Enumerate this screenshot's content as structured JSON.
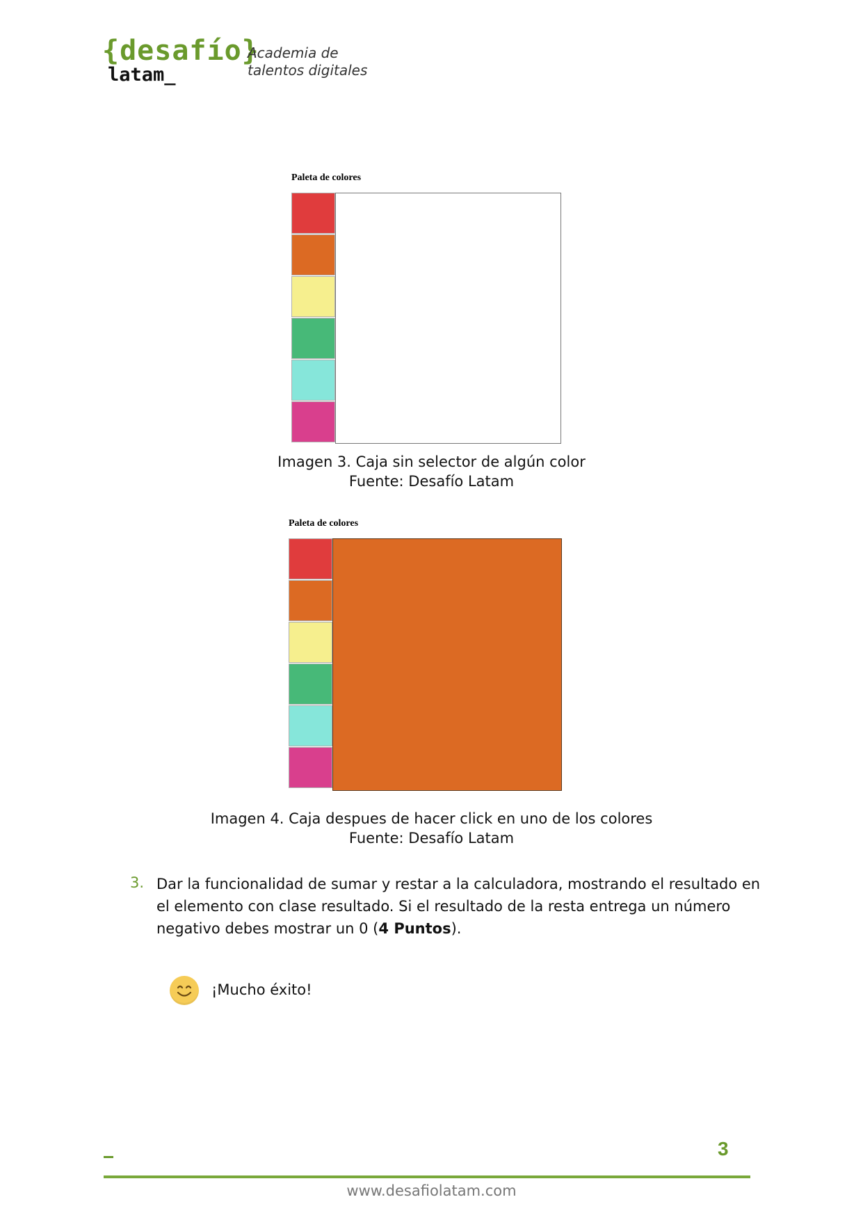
{
  "header": {
    "logo_main": "{desafío}",
    "logo_sub": "latam_",
    "tagline_line1": "Academia de",
    "tagline_line2": "talentos digitales"
  },
  "figure3": {
    "title": "Paleta de colores",
    "palette": [
      "#e03c3d",
      "#dc6a23",
      "#f6ef8e",
      "#47b978",
      "#86e6da",
      "#d93f8d"
    ],
    "box_color": "#ffffff",
    "caption_line1": "Imagen 3. Caja sin selector de algún color",
    "caption_line2": "Fuente: Desafío Latam"
  },
  "figure4": {
    "title": "Paleta de colores",
    "palette": [
      "#e03c3d",
      "#dc6a23",
      "#f6ef8e",
      "#47b978",
      "#86e6da",
      "#d93f8d"
    ],
    "box_color": "#dc6a23",
    "caption_line1": "Imagen 4. Caja despues de hacer click en uno de los colores",
    "caption_line2": "Fuente: Desafío Latam"
  },
  "list_item": {
    "number": "3.",
    "text_before": "Dar la funcionalidad de sumar y restar a la calculadora, mostrando el resultado en el elemento con clase resultado. Si el resultado de la resta entrega un número negativo debes mostrar un 0 (",
    "text_bold": "4 Puntos",
    "text_after": ")."
  },
  "closing": {
    "icon": "smiley-icon",
    "message": "¡Mucho éxito!"
  },
  "footer": {
    "page_number": "3",
    "url": "www.desafiolatam.com"
  },
  "colors": {
    "brand_green": "#6a9a2c"
  }
}
